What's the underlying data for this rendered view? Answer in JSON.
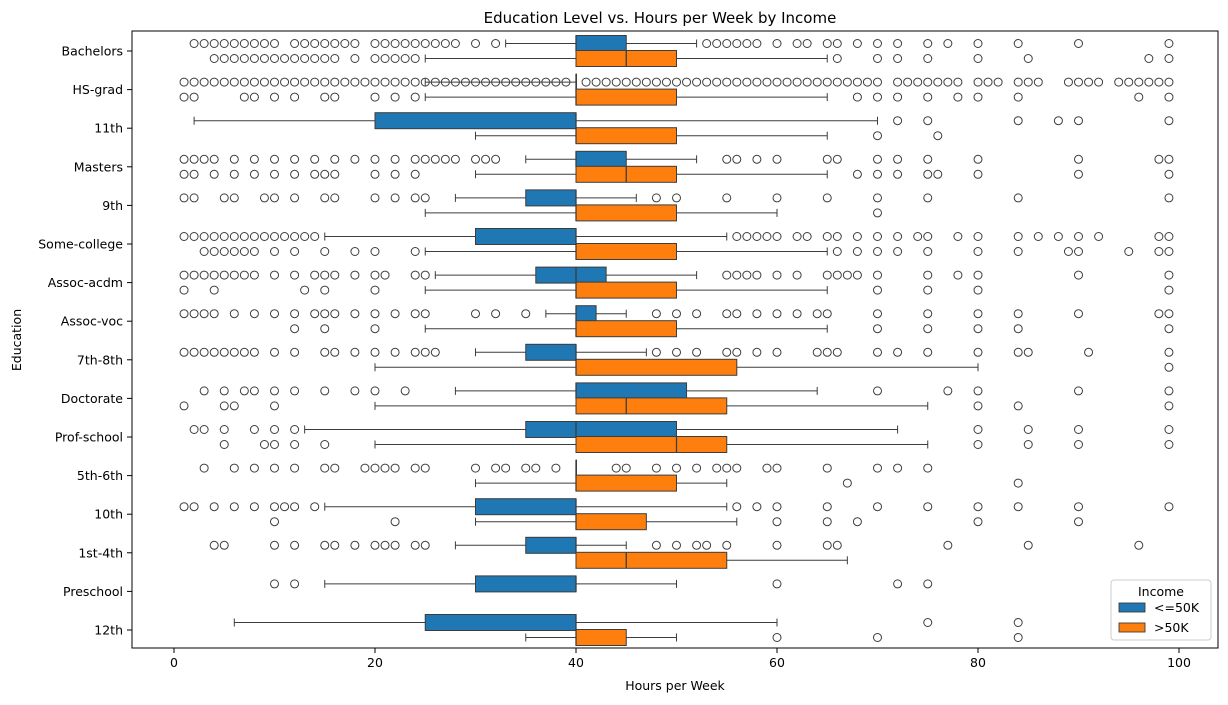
{
  "chart_data": {
    "type": "boxplot",
    "title": "Education Level vs. Hours per Week by Income",
    "xlabel": "Hours per Week",
    "ylabel": "Education",
    "xlim": [
      -4,
      103
    ],
    "xticks": [
      0,
      20,
      40,
      60,
      80,
      100
    ],
    "orientation": "horizontal",
    "legend": {
      "title": "Income",
      "placement": "lower-right",
      "entries": [
        {
          "name": "<=50K",
          "color": "#1f77b4"
        },
        {
          "name": ">50K",
          "color": "#ff7f0e"
        }
      ]
    },
    "categories": [
      "Bachelors",
      "HS-grad",
      "11th",
      "Masters",
      "9th",
      "Some-college",
      "Assoc-acdm",
      "Assoc-voc",
      "7th-8th",
      "Doctorate",
      "Prof-school",
      "5th-6th",
      "10th",
      "1st-4th",
      "Preschool",
      "12th"
    ],
    "series": [
      {
        "name": "<=50K",
        "color": "#1f77b4",
        "boxes": [
          {
            "whislo": 33,
            "q1": 40,
            "med": 40,
            "q3": 45,
            "whishi": 52,
            "fliers": [
              2,
              3,
              4,
              5,
              6,
              7,
              8,
              9,
              10,
              12,
              13,
              14,
              15,
              16,
              17,
              18,
              20,
              21,
              22,
              23,
              24,
              25,
              26,
              27,
              28,
              30,
              32,
              53,
              54,
              55,
              56,
              57,
              58,
              60,
              62,
              63,
              65,
              66,
              68,
              70,
              72,
              75,
              77,
              80,
              84,
              90,
              99
            ]
          },
          {
            "whislo": 25,
            "q1": 40,
            "med": 40,
            "q3": 40,
            "whishi": 40,
            "fliers": [
              1,
              2,
              3,
              4,
              5,
              6,
              7,
              8,
              9,
              10,
              11,
              12,
              13,
              14,
              15,
              16,
              17,
              18,
              19,
              20,
              21,
              22,
              23,
              24,
              25,
              26,
              27,
              28,
              29,
              30,
              31,
              32,
              33,
              34,
              35,
              36,
              37,
              38,
              39,
              41,
              42,
              43,
              44,
              45,
              46,
              47,
              48,
              49,
              50,
              51,
              52,
              53,
              54,
              55,
              56,
              57,
              58,
              59,
              60,
              61,
              62,
              63,
              64,
              65,
              66,
              67,
              68,
              69,
              70,
              72,
              73,
              74,
              75,
              76,
              77,
              78,
              80,
              81,
              82,
              84,
              85,
              86,
              89,
              90,
              91,
              92,
              94,
              95,
              96,
              97,
              98,
              99
            ]
          },
          {
            "whislo": 2,
            "q1": 20,
            "med": 40,
            "q3": 40,
            "whishi": 70,
            "fliers": [
              72,
              75,
              84,
              88,
              90,
              99
            ]
          },
          {
            "whislo": 35,
            "q1": 40,
            "med": 40,
            "q3": 45,
            "whishi": 52,
            "fliers": [
              1,
              2,
              3,
              4,
              6,
              8,
              10,
              12,
              14,
              16,
              18,
              20,
              22,
              24,
              25,
              26,
              27,
              28,
              30,
              31,
              32,
              55,
              56,
              58,
              60,
              65,
              66,
              70,
              72,
              75,
              80,
              90,
              98,
              99
            ]
          },
          {
            "whislo": 28,
            "q1": 35,
            "med": 40,
            "q3": 40,
            "whishi": 46,
            "fliers": [
              1,
              2,
              5,
              6,
              9,
              10,
              12,
              15,
              16,
              20,
              22,
              24,
              25,
              48,
              50,
              55,
              60,
              65,
              70,
              75,
              84,
              99
            ]
          },
          {
            "whislo": 15,
            "q1": 30,
            "med": 40,
            "q3": 40,
            "whishi": 55,
            "fliers": [
              1,
              2,
              3,
              4,
              5,
              6,
              7,
              8,
              9,
              10,
              11,
              12,
              13,
              14,
              56,
              57,
              58,
              59,
              60,
              62,
              63,
              65,
              66,
              68,
              70,
              72,
              74,
              75,
              78,
              80,
              84,
              86,
              88,
              90,
              92,
              98,
              99
            ]
          },
          {
            "whislo": 26,
            "q1": 36,
            "med": 40,
            "q3": 43,
            "whishi": 52,
            "fliers": [
              1,
              2,
              3,
              4,
              5,
              6,
              7,
              8,
              10,
              12,
              14,
              15,
              16,
              18,
              20,
              21,
              24,
              25,
              55,
              56,
              57,
              58,
              60,
              62,
              65,
              66,
              67,
              68,
              70,
              75,
              78,
              80,
              90,
              99
            ]
          },
          {
            "whislo": 37,
            "q1": 40,
            "med": 40,
            "q3": 42,
            "whishi": 45,
            "fliers": [
              1,
              2,
              3,
              4,
              6,
              8,
              10,
              12,
              14,
              15,
              16,
              18,
              20,
              22,
              24,
              25,
              30,
              32,
              35,
              48,
              50,
              52,
              55,
              56,
              58,
              60,
              62,
              64,
              65,
              70,
              75,
              80,
              84,
              90,
              98,
              99
            ]
          },
          {
            "whislo": 30,
            "q1": 35,
            "med": 40,
            "q3": 40,
            "whishi": 47,
            "fliers": [
              1,
              2,
              3,
              4,
              5,
              6,
              7,
              8,
              10,
              12,
              15,
              16,
              18,
              20,
              22,
              24,
              25,
              26,
              48,
              50,
              52,
              55,
              56,
              58,
              60,
              64,
              65,
              66,
              70,
              72,
              75,
              80,
              84,
              85,
              91,
              99
            ]
          },
          {
            "whislo": 28,
            "q1": 40,
            "med": 40,
            "q3": 51,
            "whishi": 64,
            "fliers": [
              3,
              5,
              7,
              8,
              10,
              12,
              15,
              18,
              20,
              23,
              70,
              77,
              80,
              90,
              99
            ]
          },
          {
            "whislo": 13,
            "q1": 35,
            "med": 40,
            "q3": 50,
            "whishi": 72,
            "fliers": [
              2,
              3,
              5,
              8,
              10,
              12,
              80,
              85,
              90,
              99
            ]
          },
          {
            "whislo": 40,
            "q1": 40,
            "med": 40,
            "q3": 40,
            "whishi": 40,
            "fliers": [
              3,
              6,
              8,
              10,
              12,
              15,
              16,
              19,
              20,
              21,
              22,
              24,
              25,
              30,
              32,
              33,
              35,
              36,
              38,
              44,
              45,
              48,
              50,
              52,
              54,
              55,
              56,
              59,
              60,
              65,
              70,
              72,
              75
            ]
          },
          {
            "whislo": 15,
            "q1": 30,
            "med": 40,
            "q3": 40,
            "whishi": 55,
            "fliers": [
              1,
              2,
              4,
              6,
              8,
              10,
              11,
              12,
              14,
              56,
              58,
              60,
              65,
              70,
              75,
              80,
              84,
              90,
              99
            ]
          },
          {
            "whislo": 28,
            "q1": 35,
            "med": 40,
            "q3": 40,
            "whishi": 45,
            "fliers": [
              4,
              5,
              10,
              12,
              15,
              16,
              18,
              20,
              21,
              22,
              24,
              25,
              48,
              50,
              52,
              53,
              55,
              60,
              65,
              66,
              77,
              85,
              96
            ]
          },
          {
            "whislo": 15,
            "q1": 30,
            "med": 40,
            "q3": 40,
            "whishi": 50,
            "fliers": [
              10,
              12,
              60,
              72,
              75
            ]
          },
          {
            "whislo": 6,
            "q1": 25,
            "med": 40,
            "q3": 40,
            "whishi": 60,
            "fliers": [
              75,
              84
            ]
          }
        ]
      },
      {
        "name": ">50K",
        "color": "#ff7f0e",
        "boxes": [
          {
            "whislo": 25,
            "q1": 40,
            "med": 45,
            "q3": 50,
            "whishi": 65,
            "fliers": [
              4,
              5,
              6,
              7,
              8,
              9,
              10,
              11,
              12,
              13,
              14,
              15,
              16,
              18,
              20,
              21,
              22,
              23,
              24,
              66,
              70,
              72,
              75,
              80,
              85,
              97,
              99
            ]
          },
          {
            "whislo": 25,
            "q1": 40,
            "med": 40,
            "q3": 50,
            "whishi": 65,
            "fliers": [
              1,
              2,
              7,
              8,
              10,
              12,
              15,
              16,
              20,
              22,
              24,
              68,
              70,
              72,
              75,
              78,
              80,
              84,
              96,
              99
            ]
          },
          {
            "whislo": 30,
            "q1": 40,
            "med": 40,
            "q3": 50,
            "whishi": 65,
            "fliers": [
              70,
              76
            ]
          },
          {
            "whislo": 30,
            "q1": 40,
            "med": 45,
            "q3": 50,
            "whishi": 65,
            "fliers": [
              1,
              2,
              4,
              6,
              8,
              10,
              12,
              14,
              15,
              16,
              20,
              22,
              24,
              68,
              70,
              72,
              75,
              76,
              80,
              90,
              99
            ]
          },
          {
            "whislo": 25,
            "q1": 40,
            "med": 40,
            "q3": 50,
            "whishi": 60,
            "fliers": [
              70
            ]
          },
          {
            "whislo": 25,
            "q1": 40,
            "med": 40,
            "q3": 50,
            "whishi": 65,
            "fliers": [
              3,
              4,
              5,
              6,
              7,
              8,
              10,
              12,
              15,
              18,
              20,
              24,
              66,
              68,
              70,
              72,
              75,
              80,
              84,
              89,
              90,
              95,
              98,
              99
            ]
          },
          {
            "whislo": 25,
            "q1": 40,
            "med": 40,
            "q3": 50,
            "whishi": 65,
            "fliers": [
              1,
              4,
              13,
              15,
              20,
              70,
              75,
              80,
              99
            ]
          },
          {
            "whislo": 25,
            "q1": 40,
            "med": 40,
            "q3": 50,
            "whishi": 65,
            "fliers": [
              12,
              15,
              20,
              70,
              75,
              80,
              84,
              99
            ]
          },
          {
            "whislo": 20,
            "q1": 40,
            "med": 40,
            "q3": 56,
            "whishi": 80,
            "fliers": [
              99
            ]
          },
          {
            "whislo": 20,
            "q1": 40,
            "med": 45,
            "q3": 55,
            "whishi": 75,
            "fliers": [
              1,
              5,
              6,
              10,
              80,
              84,
              99
            ]
          },
          {
            "whislo": 20,
            "q1": 40,
            "med": 50,
            "q3": 55,
            "whishi": 75,
            "fliers": [
              5,
              9,
              10,
              12,
              15,
              80,
              85,
              90,
              99
            ]
          },
          {
            "whislo": 30,
            "q1": 40,
            "med": 40,
            "q3": 50,
            "whishi": 55,
            "fliers": [
              67,
              84
            ]
          },
          {
            "whislo": 30,
            "q1": 40,
            "med": 40,
            "q3": 47,
            "whishi": 56,
            "fliers": [
              10,
              22,
              60,
              65,
              68,
              80,
              90
            ]
          },
          {
            "whislo": 40,
            "q1": 40,
            "med": 45,
            "q3": 55,
            "whishi": 67,
            "fliers": []
          },
          null,
          {
            "whislo": 35,
            "q1": 40,
            "med": 40,
            "q3": 45,
            "whishi": 50,
            "fliers": [
              60,
              70,
              84
            ]
          }
        ]
      }
    ]
  }
}
